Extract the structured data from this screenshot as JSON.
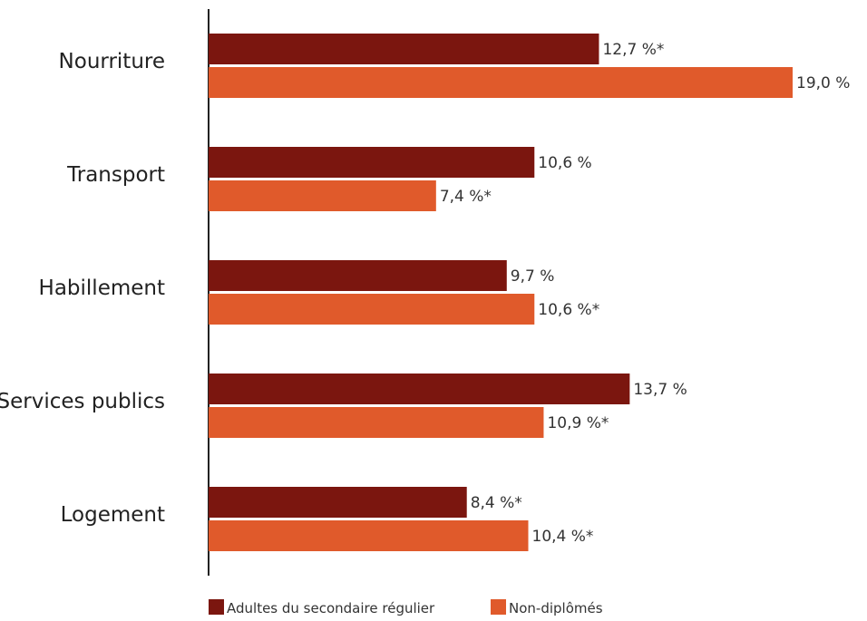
{
  "chart_data": {
    "type": "bar",
    "orientation": "horizontal",
    "categories": [
      "Nourriture",
      "Transport",
      "Habillement",
      "Services publics",
      "Logement"
    ],
    "series": [
      {
        "name": "Adultes du secondaire régulier",
        "color": "#7b160f",
        "values": [
          12.7,
          10.6,
          9.7,
          13.7,
          8.4
        ],
        "labels": [
          "12,7 %*",
          "10,6 %",
          "9,7 %",
          "13,7 %",
          "8,4 %*"
        ]
      },
      {
        "name": "Non-diplômés",
        "color": "#e05a2b",
        "values": [
          19.0,
          7.4,
          10.6,
          10.9,
          10.4
        ],
        "labels": [
          "19,0 %",
          "7,4 %*",
          "10,6 %*",
          "10,9 %*",
          "10,4 %*"
        ]
      }
    ],
    "xlim": [
      0,
      25
    ],
    "grid": false,
    "legend_position": "bottom-left"
  }
}
